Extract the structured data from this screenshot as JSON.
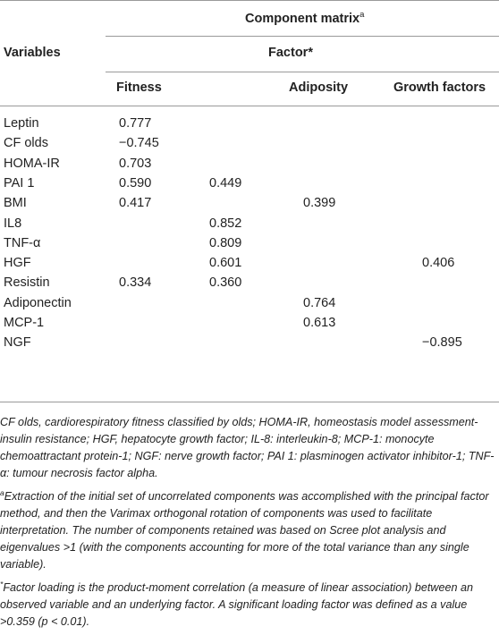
{
  "header": {
    "component_matrix": "Component matrix",
    "component_matrix_sup": "a",
    "variables": "Variables",
    "factor": "Factor*",
    "col_fitness": "Fitness",
    "col_adiposity": "Adiposity",
    "col_growth": "Growth factors"
  },
  "rows": [
    {
      "name": "Leptin",
      "c1": "0.777",
      "c2": "",
      "c3": "",
      "c4": ""
    },
    {
      "name": "CF olds",
      "c1": "−0.745",
      "c2": "",
      "c3": "",
      "c4": ""
    },
    {
      "name": "HOMA-IR",
      "c1": "0.703",
      "c2": "",
      "c3": "",
      "c4": ""
    },
    {
      "name": "PAI 1",
      "c1": "0.590",
      "c2": "0.449",
      "c3": "",
      "c4": ""
    },
    {
      "name": "BMI",
      "c1": "0.417",
      "c2": "",
      "c3": "0.399",
      "c4": ""
    },
    {
      "name": "IL8",
      "c1": "",
      "c2": "0.852",
      "c3": "",
      "c4": ""
    },
    {
      "name": "TNF-α",
      "c1": "",
      "c2": "0.809",
      "c3": "",
      "c4": ""
    },
    {
      "name": "HGF",
      "c1": "",
      "c2": "0.601",
      "c3": "",
      "c4": "0.406"
    },
    {
      "name": "Resistin",
      "c1": "0.334",
      "c2": "0.360",
      "c3": "",
      "c4": ""
    },
    {
      "name": "Adiponectin",
      "c1": "",
      "c2": "",
      "c3": "0.764",
      "c4": ""
    },
    {
      "name": "MCP-1",
      "c1": "",
      "c2": "",
      "c3": "0.613",
      "c4": ""
    },
    {
      "name": "NGF",
      "c1": "",
      "c2": "",
      "c3": "",
      "c4": "−0.895"
    }
  ],
  "footnotes": {
    "abbreviations": "CF olds, cardiorespiratory fitness classified by olds; HOMA-IR, homeostasis model assessment-insulin resistance; HGF, hepatocyte growth factor; IL-8: interleukin-8; MCP-1: monocyte chemoattractant protein-1; NGF: nerve growth factor; PAI 1: plasminogen activator inhibitor-1; TNF-α: tumour necrosis factor alpha.",
    "note_a_marker": "a",
    "note_a": "Extraction of the initial set of uncorrelated components was accomplished with the principal factor method, and then the Varimax orthogonal rotation of components was used to facilitate interpretation. The number of components retained was based on Scree plot analysis and eigenvalues >1 (with the components accounting for more of the total variance than any single variable).",
    "note_star_marker": "*",
    "note_star": "Factor loading is the product-moment correlation (a measure of linear association) between an observed variable and an underlying factor. A significant loading factor was defined as a value >0.359 (p < 0.01)."
  }
}
